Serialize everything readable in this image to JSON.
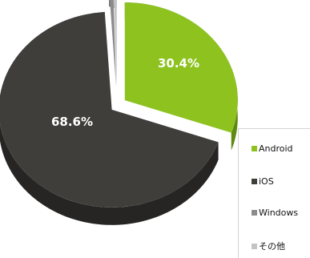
{
  "chart_data": {
    "type": "pie",
    "style": "3d-exploded",
    "title": "",
    "slices": [
      {
        "label": "Android",
        "value": 30.4,
        "display": "30.4%",
        "color": "#8dc21f",
        "side_color": "#5f8a12"
      },
      {
        "label": "iOS",
        "value": 68.6,
        "display": "68.6%",
        "color": "#3f3e3b",
        "side_color": "#262524"
      },
      {
        "label": "Windows",
        "value": 0.6,
        "display": "",
        "color": "#8c8c8c",
        "side_color": "#6a6a6a"
      },
      {
        "label": "その他",
        "value": 0.4,
        "display": "",
        "color": "#c4c4c4",
        "side_color": "#9c9c9c"
      }
    ],
    "legend_position": "right"
  }
}
